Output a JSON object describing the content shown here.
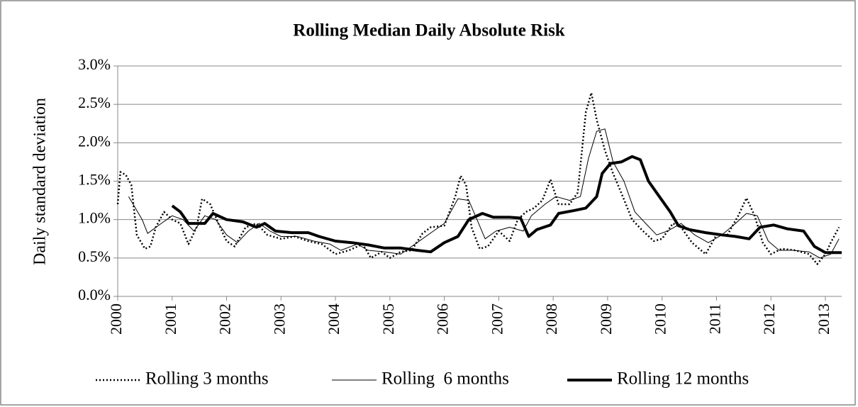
{
  "chart_data": {
    "type": "line",
    "title": "Rolling Median Daily Absolute Risk",
    "y_label": "Daily standard deviation",
    "xlim": [
      2000,
      2013.3
    ],
    "xticks": [
      2000,
      2001,
      2002,
      2003,
      2004,
      2005,
      2006,
      2007,
      2008,
      2009,
      2010,
      2011,
      2012,
      2013
    ],
    "ylim": [
      0,
      3
    ],
    "yticks": [
      {
        "value": 0,
        "label": "0.0%"
      },
      {
        "value": 0.5,
        "label": "0.5%"
      },
      {
        "value": 1,
        "label": "1.0%"
      },
      {
        "value": 1.5,
        "label": "1.5%"
      },
      {
        "value": 2,
        "label": "2.0%"
      },
      {
        "value": 2.5,
        "label": "2.5%"
      },
      {
        "value": 3,
        "label": "3.0%"
      }
    ],
    "grid": true,
    "legend": "bottom",
    "series": [
      {
        "name": "Rolling 3 months",
        "color": "#000000",
        "style": "dotted",
        "line_width": 2.5,
        "x": [
          2000.0,
          2000.05,
          2000.15,
          2000.25,
          2000.35,
          2000.5,
          2000.6,
          2000.7,
          2000.85,
          2001.0,
          2001.15,
          2001.3,
          2001.45,
          2001.55,
          2001.7,
          2001.85,
          2002.0,
          2002.15,
          2002.35,
          2002.55,
          2002.75,
          2003.0,
          2003.25,
          2003.5,
          2003.75,
          2004.0,
          2004.25,
          2004.5,
          2004.65,
          2004.85,
          2005.0,
          2005.2,
          2005.4,
          2005.6,
          2005.75,
          2006.0,
          2006.2,
          2006.3,
          2006.4,
          2006.5,
          2006.65,
          2006.8,
          2007.0,
          2007.2,
          2007.35,
          2007.5,
          2007.65,
          2007.8,
          2007.95,
          2008.1,
          2008.3,
          2008.45,
          2008.6,
          2008.7,
          2008.8,
          2008.95,
          2009.1,
          2009.25,
          2009.45,
          2009.65,
          2009.85,
          2010.0,
          2010.2,
          2010.35,
          2010.55,
          2010.8,
          2011.0,
          2011.2,
          2011.4,
          2011.55,
          2011.7,
          2011.85,
          2012.0,
          2012.2,
          2012.45,
          2012.7,
          2012.85,
          2013.0,
          2013.1,
          2013.25
        ],
        "values": [
          1.2,
          1.62,
          1.58,
          1.45,
          0.8,
          0.62,
          0.65,
          0.9,
          1.1,
          1.0,
          0.95,
          0.68,
          0.9,
          1.27,
          1.2,
          0.95,
          0.72,
          0.65,
          0.9,
          0.95,
          0.8,
          0.75,
          0.78,
          0.72,
          0.68,
          0.55,
          0.6,
          0.68,
          0.5,
          0.58,
          0.5,
          0.58,
          0.6,
          0.82,
          0.9,
          0.92,
          1.3,
          1.57,
          1.45,
          0.9,
          0.62,
          0.65,
          0.85,
          0.72,
          1.0,
          1.1,
          1.15,
          1.25,
          1.52,
          1.2,
          1.2,
          1.35,
          2.4,
          2.65,
          2.3,
          1.9,
          1.6,
          1.35,
          1.0,
          0.85,
          0.72,
          0.75,
          0.95,
          0.9,
          0.7,
          0.55,
          0.8,
          0.8,
          1.05,
          1.28,
          1.05,
          0.7,
          0.55,
          0.62,
          0.6,
          0.55,
          0.42,
          0.55,
          0.7,
          0.9
        ]
      },
      {
        "name": "Rolling  6 months",
        "color": "#000000",
        "style": "solid",
        "line_width": 1,
        "x": [
          2000.2,
          2000.45,
          2000.55,
          2000.8,
          2001.0,
          2001.2,
          2001.4,
          2001.6,
          2001.8,
          2002.0,
          2002.2,
          2002.4,
          2002.6,
          2002.8,
          2003.0,
          2003.3,
          2003.6,
          2003.9,
          2004.1,
          2004.4,
          2004.6,
          2004.9,
          2005.2,
          2005.5,
          2005.8,
          2006.0,
          2006.25,
          2006.45,
          2006.6,
          2006.75,
          2006.95,
          2007.2,
          2007.45,
          2007.6,
          2007.85,
          2008.05,
          2008.3,
          2008.5,
          2008.65,
          2008.8,
          2008.95,
          2009.1,
          2009.3,
          2009.5,
          2009.7,
          2009.9,
          2010.1,
          2010.35,
          2010.6,
          2010.85,
          2011.1,
          2011.35,
          2011.55,
          2011.75,
          2011.95,
          2012.15,
          2012.4,
          2012.7,
          2012.9,
          2013.1,
          2013.25
        ],
        "values": [
          1.3,
          1.0,
          0.82,
          0.95,
          1.05,
          1.0,
          0.85,
          1.05,
          1.0,
          0.8,
          0.7,
          0.85,
          0.95,
          0.85,
          0.78,
          0.78,
          0.72,
          0.68,
          0.6,
          0.68,
          0.6,
          0.58,
          0.55,
          0.7,
          0.85,
          0.95,
          1.27,
          1.25,
          1.0,
          0.75,
          0.85,
          0.9,
          0.85,
          1.05,
          1.2,
          1.3,
          1.25,
          1.3,
          1.8,
          2.15,
          2.18,
          1.75,
          1.5,
          1.1,
          0.95,
          0.8,
          0.85,
          0.95,
          0.8,
          0.7,
          0.8,
          0.95,
          1.08,
          1.05,
          0.72,
          0.6,
          0.6,
          0.58,
          0.5,
          0.55,
          0.75
        ]
      },
      {
        "name": "Rolling 12 months",
        "color": "#000000",
        "style": "solid",
        "line_width": 4,
        "x": [
          2001.0,
          2001.15,
          2001.3,
          2001.6,
          2001.75,
          2002.0,
          2002.3,
          2002.55,
          2002.7,
          2002.9,
          2003.2,
          2003.5,
          2003.7,
          2004.0,
          2004.3,
          2004.6,
          2004.9,
          2005.2,
          2005.5,
          2005.75,
          2006.0,
          2006.25,
          2006.45,
          2006.7,
          2006.9,
          2007.2,
          2007.4,
          2007.55,
          2007.7,
          2007.95,
          2008.1,
          2008.4,
          2008.6,
          2008.8,
          2008.9,
          2009.05,
          2009.25,
          2009.45,
          2009.6,
          2009.75,
          2009.95,
          2010.15,
          2010.3,
          2010.5,
          2010.8,
          2011.1,
          2011.35,
          2011.6,
          2011.8,
          2012.05,
          2012.3,
          2012.6,
          2012.8,
          2013.0,
          2013.3
        ],
        "values": [
          1.18,
          1.1,
          0.95,
          0.95,
          1.08,
          1.0,
          0.97,
          0.9,
          0.95,
          0.85,
          0.83,
          0.83,
          0.78,
          0.72,
          0.7,
          0.67,
          0.63,
          0.63,
          0.6,
          0.58,
          0.7,
          0.78,
          1.0,
          1.08,
          1.03,
          1.03,
          1.02,
          0.78,
          0.87,
          0.93,
          1.08,
          1.12,
          1.15,
          1.3,
          1.6,
          1.73,
          1.75,
          1.82,
          1.78,
          1.5,
          1.3,
          1.1,
          0.92,
          0.87,
          0.83,
          0.8,
          0.78,
          0.75,
          0.9,
          0.93,
          0.88,
          0.85,
          0.65,
          0.57,
          0.57
        ]
      }
    ]
  }
}
